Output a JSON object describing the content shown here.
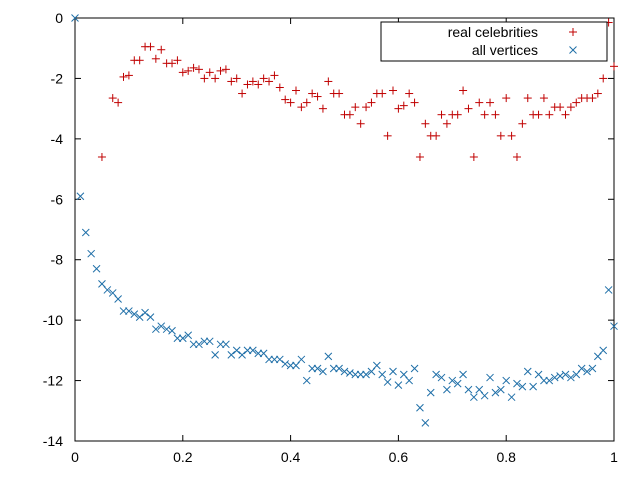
{
  "chart_data": {
    "type": "scatter",
    "title": "",
    "xlabel": "",
    "ylabel": "",
    "xlim": [
      0,
      1
    ],
    "ylim": [
      -14,
      0
    ],
    "x_ticks": [
      "0",
      "0.2",
      "0.4",
      "0.6",
      "0.8",
      "1"
    ],
    "y_ticks": [
      "0",
      "-2",
      "-4",
      "-6",
      "-8",
      "-10",
      "-12",
      "-14"
    ],
    "grid": false,
    "legend_position": "top-right",
    "series": [
      {
        "name": "real celebrities",
        "marker": "plus",
        "color": "#c00000",
        "points": [
          [
            0.05,
            -4.6
          ],
          [
            0.07,
            -2.65
          ],
          [
            0.08,
            -2.8
          ],
          [
            0.09,
            -1.95
          ],
          [
            0.1,
            -1.9
          ],
          [
            0.11,
            -1.4
          ],
          [
            0.12,
            -1.4
          ],
          [
            0.13,
            -0.95
          ],
          [
            0.14,
            -0.95
          ],
          [
            0.15,
            -1.35
          ],
          [
            0.16,
            -1.05
          ],
          [
            0.17,
            -1.5
          ],
          [
            0.18,
            -1.5
          ],
          [
            0.19,
            -1.4
          ],
          [
            0.2,
            -1.8
          ],
          [
            0.21,
            -1.75
          ],
          [
            0.22,
            -1.65
          ],
          [
            0.23,
            -1.7
          ],
          [
            0.24,
            -2.0
          ],
          [
            0.25,
            -1.8
          ],
          [
            0.26,
            -2.0
          ],
          [
            0.27,
            -1.75
          ],
          [
            0.28,
            -1.7
          ],
          [
            0.29,
            -2.1
          ],
          [
            0.3,
            -2.0
          ],
          [
            0.31,
            -2.5
          ],
          [
            0.32,
            -2.2
          ],
          [
            0.33,
            -2.1
          ],
          [
            0.34,
            -2.2
          ],
          [
            0.35,
            -2.0
          ],
          [
            0.36,
            -2.1
          ],
          [
            0.37,
            -1.9
          ],
          [
            0.38,
            -2.3
          ],
          [
            0.39,
            -2.7
          ],
          [
            0.4,
            -2.8
          ],
          [
            0.41,
            -2.4
          ],
          [
            0.42,
            -2.95
          ],
          [
            0.43,
            -2.8
          ],
          [
            0.44,
            -2.5
          ],
          [
            0.45,
            -2.6
          ],
          [
            0.46,
            -3.0
          ],
          [
            0.47,
            -2.1
          ],
          [
            0.48,
            -2.5
          ],
          [
            0.49,
            -2.5
          ],
          [
            0.5,
            -3.2
          ],
          [
            0.51,
            -3.2
          ],
          [
            0.52,
            -2.95
          ],
          [
            0.53,
            -3.5
          ],
          [
            0.54,
            -2.95
          ],
          [
            0.55,
            -2.8
          ],
          [
            0.56,
            -2.5
          ],
          [
            0.57,
            -2.5
          ],
          [
            0.58,
            -3.9
          ],
          [
            0.59,
            -2.4
          ],
          [
            0.6,
            -3.0
          ],
          [
            0.61,
            -2.9
          ],
          [
            0.62,
            -2.5
          ],
          [
            0.63,
            -2.8
          ],
          [
            0.64,
            -4.6
          ],
          [
            0.65,
            -3.5
          ],
          [
            0.66,
            -3.9
          ],
          [
            0.67,
            -3.9
          ],
          [
            0.68,
            -3.2
          ],
          [
            0.69,
            -3.5
          ],
          [
            0.7,
            -3.2
          ],
          [
            0.71,
            -3.2
          ],
          [
            0.72,
            -2.4
          ],
          [
            0.73,
            -3.0
          ],
          [
            0.74,
            -4.6
          ],
          [
            0.75,
            -2.8
          ],
          [
            0.76,
            -3.2
          ],
          [
            0.77,
            -2.8
          ],
          [
            0.78,
            -3.2
          ],
          [
            0.79,
            -3.9
          ],
          [
            0.8,
            -2.65
          ],
          [
            0.81,
            -3.9
          ],
          [
            0.82,
            -4.6
          ],
          [
            0.83,
            -3.5
          ],
          [
            0.84,
            -2.65
          ],
          [
            0.85,
            -3.2
          ],
          [
            0.86,
            -3.2
          ],
          [
            0.87,
            -2.65
          ],
          [
            0.88,
            -3.2
          ],
          [
            0.89,
            -2.95
          ],
          [
            0.9,
            -2.95
          ],
          [
            0.91,
            -3.2
          ],
          [
            0.92,
            -2.95
          ],
          [
            0.93,
            -2.8
          ],
          [
            0.94,
            -2.65
          ],
          [
            0.95,
            -2.65
          ],
          [
            0.96,
            -2.65
          ],
          [
            0.97,
            -2.5
          ],
          [
            0.98,
            -2.0
          ],
          [
            0.99,
            -0.15
          ],
          [
            1.0,
            -1.6
          ]
        ]
      },
      {
        "name": "all vertices",
        "marker": "cross",
        "color": "#1f6fa8",
        "points": [
          [
            0.0,
            0.0
          ],
          [
            0.01,
            -5.9
          ],
          [
            0.02,
            -7.1
          ],
          [
            0.03,
            -7.8
          ],
          [
            0.04,
            -8.3
          ],
          [
            0.05,
            -8.8
          ],
          [
            0.06,
            -9.0
          ],
          [
            0.07,
            -9.1
          ],
          [
            0.08,
            -9.3
          ],
          [
            0.09,
            -9.7
          ],
          [
            0.1,
            -9.7
          ],
          [
            0.11,
            -9.8
          ],
          [
            0.12,
            -9.9
          ],
          [
            0.13,
            -9.75
          ],
          [
            0.14,
            -9.9
          ],
          [
            0.15,
            -10.3
          ],
          [
            0.16,
            -10.2
          ],
          [
            0.17,
            -10.3
          ],
          [
            0.18,
            -10.35
          ],
          [
            0.19,
            -10.6
          ],
          [
            0.2,
            -10.6
          ],
          [
            0.21,
            -10.5
          ],
          [
            0.22,
            -10.8
          ],
          [
            0.23,
            -10.8
          ],
          [
            0.24,
            -10.7
          ],
          [
            0.25,
            -10.7
          ],
          [
            0.26,
            -11.15
          ],
          [
            0.27,
            -10.8
          ],
          [
            0.28,
            -10.8
          ],
          [
            0.29,
            -11.15
          ],
          [
            0.3,
            -11.0
          ],
          [
            0.31,
            -11.15
          ],
          [
            0.32,
            -11.0
          ],
          [
            0.33,
            -11.0
          ],
          [
            0.34,
            -11.1
          ],
          [
            0.35,
            -11.1
          ],
          [
            0.36,
            -11.3
          ],
          [
            0.37,
            -11.3
          ],
          [
            0.38,
            -11.3
          ],
          [
            0.39,
            -11.45
          ],
          [
            0.4,
            -11.5
          ],
          [
            0.41,
            -11.5
          ],
          [
            0.42,
            -11.3
          ],
          [
            0.43,
            -12.0
          ],
          [
            0.44,
            -11.6
          ],
          [
            0.45,
            -11.6
          ],
          [
            0.46,
            -11.7
          ],
          [
            0.47,
            -11.2
          ],
          [
            0.48,
            -11.6
          ],
          [
            0.49,
            -11.6
          ],
          [
            0.5,
            -11.7
          ],
          [
            0.51,
            -11.75
          ],
          [
            0.52,
            -11.8
          ],
          [
            0.53,
            -11.8
          ],
          [
            0.54,
            -11.8
          ],
          [
            0.55,
            -11.7
          ],
          [
            0.56,
            -11.5
          ],
          [
            0.57,
            -11.8
          ],
          [
            0.58,
            -12.05
          ],
          [
            0.59,
            -11.7
          ],
          [
            0.6,
            -12.15
          ],
          [
            0.61,
            -11.8
          ],
          [
            0.62,
            -12.0
          ],
          [
            0.63,
            -11.6
          ],
          [
            0.64,
            -12.9
          ],
          [
            0.65,
            -13.4
          ],
          [
            0.66,
            -12.4
          ],
          [
            0.67,
            -11.8
          ],
          [
            0.68,
            -11.9
          ],
          [
            0.69,
            -12.3
          ],
          [
            0.7,
            -12.0
          ],
          [
            0.71,
            -12.1
          ],
          [
            0.72,
            -11.8
          ],
          [
            0.73,
            -12.3
          ],
          [
            0.74,
            -12.55
          ],
          [
            0.75,
            -12.3
          ],
          [
            0.76,
            -12.5
          ],
          [
            0.77,
            -11.9
          ],
          [
            0.78,
            -12.4
          ],
          [
            0.79,
            -12.3
          ],
          [
            0.8,
            -12.0
          ],
          [
            0.81,
            -12.55
          ],
          [
            0.82,
            -12.1
          ],
          [
            0.83,
            -12.2
          ],
          [
            0.84,
            -11.7
          ],
          [
            0.85,
            -12.2
          ],
          [
            0.86,
            -11.8
          ],
          [
            0.87,
            -12.0
          ],
          [
            0.88,
            -12.0
          ],
          [
            0.89,
            -11.9
          ],
          [
            0.9,
            -11.85
          ],
          [
            0.91,
            -11.8
          ],
          [
            0.92,
            -11.9
          ],
          [
            0.93,
            -11.8
          ],
          [
            0.94,
            -11.6
          ],
          [
            0.95,
            -11.7
          ],
          [
            0.96,
            -11.6
          ],
          [
            0.97,
            -11.2
          ],
          [
            0.98,
            -11.0
          ],
          [
            0.99,
            -9.0
          ],
          [
            1.0,
            -10.2
          ]
        ]
      }
    ]
  }
}
